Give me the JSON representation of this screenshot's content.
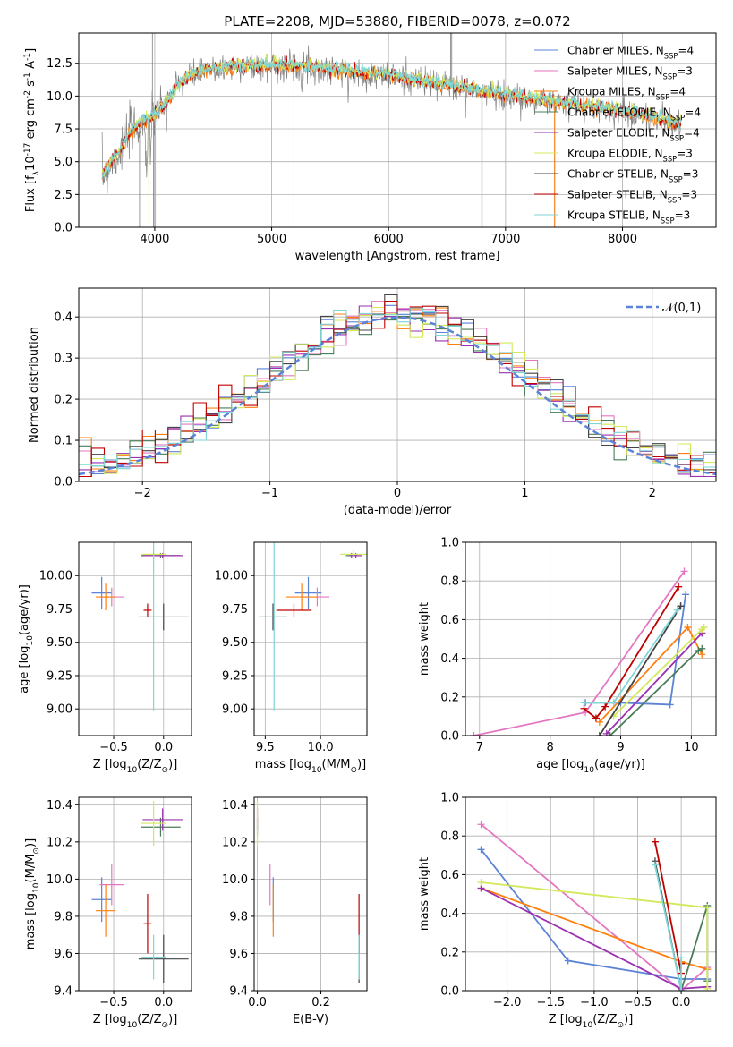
{
  "chart_data": [
    {
      "panel": "spectrum",
      "type": "line",
      "title": "PLATE=2208, MJD=53880, FIBERID=0078, z=0.072",
      "xlabel": "wavelength [Angstrom, rest frame]",
      "ylabel": "Flux [f$_\\lambda$10$^{-17}$ erg cm$^{-2}$ s$^{-1}$ A$^{-1}$]",
      "xlim": [
        3350,
        8800
      ],
      "ylim": [
        0,
        14.8
      ],
      "xticks": [
        4000,
        5000,
        6000,
        7000,
        8000
      ],
      "yticks": [
        0.0,
        2.5,
        5.0,
        7.5,
        10.0,
        12.5
      ],
      "xtick_labels": [
        "4000",
        "5000",
        "6000",
        "7000",
        "8000"
      ],
      "ytick_labels": [
        "0.0",
        "2.5",
        "5.0",
        "7.5",
        "10.0",
        "12.5"
      ],
      "legend_position": "top-right",
      "legend": [
        "Chabrier MILES, N$_{SSP}$=4",
        "Salpeter MILES, N$_{SSP}$=3",
        "Kroupa MILES, N$_{SSP}$=4",
        "Chabrier ELODIE, N$_{SSP}$=4",
        "Salpeter ELODIE, N$_{SSP}$=4",
        "Kroupa ELODIE, N$_{SSP}$=3",
        "Chabrier STELIB, N$_{SSP}$=3",
        "Salpeter STELIB, N$_{SSP}$=3",
        "Kroupa STELIB, N$_{SSP}$=3"
      ],
      "continuum": {
        "x": [
          3550,
          3600,
          3700,
          3800,
          3900,
          4000,
          4100,
          4200,
          4300,
          4400,
          4500,
          4700,
          5000,
          5300,
          5500,
          6000,
          6500,
          7000,
          7500,
          8000,
          8500
        ],
        "y": [
          3.8,
          4.5,
          5.8,
          7.3,
          8.0,
          8.5,
          9.5,
          10.8,
          11.5,
          11.8,
          12.0,
          12.2,
          12.3,
          12.2,
          12.0,
          11.5,
          10.8,
          10.0,
          9.4,
          8.8,
          7.8
        ]
      }
    },
    {
      "panel": "residuals",
      "type": "step",
      "xlabel": "(data-model)/error",
      "ylabel": "Normed distribution",
      "xlim": [
        -2.5,
        2.5
      ],
      "ylim": [
        0,
        0.47
      ],
      "xticks": [
        -2,
        -1,
        0,
        1,
        2
      ],
      "yticks": [
        0.0,
        0.1,
        0.2,
        0.3,
        0.4
      ],
      "xtick_labels": [
        "−2",
        "−1",
        "0",
        "1",
        "2"
      ],
      "ytick_labels": [
        "0.0",
        "0.1",
        "0.2",
        "0.3",
        "0.4"
      ],
      "legend": [
        "$\\mathcal{N}(0,1)$"
      ],
      "legend_position": "top-right",
      "bins": 50,
      "gaussian": {
        "mu": 0,
        "sigma": 1
      }
    },
    {
      "panel": "age-vs-Z",
      "type": "scatter-errorbar",
      "xlabel": "Z [log$_{10}$(Z/Z$_\\odot$)]",
      "ylabel": "age  [log$_{10}$(age/yr)]",
      "xlim": [
        -0.85,
        0.28
      ],
      "ylim": [
        8.8,
        10.25
      ],
      "xticks": [
        -0.5,
        0.0
      ],
      "yticks": [
        9.0,
        9.25,
        9.5,
        9.75,
        10.0
      ],
      "xtick_labels": [
        "−0.5",
        "0.0"
      ],
      "ytick_labels": [
        "9.00",
        "9.25",
        "9.50",
        "9.75",
        "10.00"
      ]
    },
    {
      "panel": "age-vs-mass",
      "type": "scatter-errorbar",
      "xlabel": "mass [log$_{10}$(M/M$_\\odot$)]",
      "xlim": [
        9.4,
        10.42
      ],
      "ylim": [
        8.8,
        10.25
      ],
      "xticks": [
        9.5,
        10.0
      ],
      "yticks": [
        9.0,
        9.25,
        9.5,
        9.75,
        10.0
      ],
      "xtick_labels": [
        "9.5",
        "10.0"
      ],
      "ytick_labels": [
        "9.00",
        "9.25",
        "9.50",
        "9.75",
        "10.00"
      ]
    },
    {
      "panel": "weight-vs-age",
      "type": "line",
      "xlabel": "age  [log$_{10}$(age/yr)]",
      "ylabel": "mass weight",
      "xlim": [
        6.8,
        10.35
      ],
      "ylim": [
        0,
        1.0
      ],
      "xticks": [
        7,
        8,
        9,
        10
      ],
      "yticks": [
        0.0,
        0.2,
        0.4,
        0.6,
        0.8,
        1.0
      ],
      "xtick_labels": [
        "7",
        "8",
        "9",
        "10"
      ],
      "ytick_labels": [
        "0.0",
        "0.2",
        "0.4",
        "0.6",
        "0.8",
        "1.0"
      ],
      "series": [
        {
          "color": "#5b84d6",
          "x": [
            8.5,
            9.0,
            9.7,
            9.92
          ],
          "y": [
            0.17,
            0.17,
            0.16,
            0.73
          ]
        },
        {
          "color": "#e377c2",
          "x": [
            6.92,
            8.5,
            9.9
          ],
          "y": [
            0.0,
            0.12,
            0.85
          ]
        },
        {
          "color": "#ff7f0e",
          "x": [
            8.7,
            9.95,
            10.15
          ],
          "y": [
            0.07,
            0.56,
            0.42
          ]
        },
        {
          "color": "#4a7c59",
          "x": [
            8.85,
            10.1,
            10.15
          ],
          "y": [
            0.0,
            0.44,
            0.45
          ]
        },
        {
          "color": "#9b30b0",
          "x": [
            8.8,
            10.15,
            10.15
          ],
          "y": [
            0.01,
            0.53,
            0.53
          ]
        },
        {
          "color": "#d4e85a",
          "x": [
            8.9,
            10.15,
            10.18
          ],
          "y": [
            0.1,
            0.55,
            0.56
          ]
        },
        {
          "color": "#444444",
          "x": [
            8.7,
            9.85,
            9.85
          ],
          "y": [
            0.0,
            0.67,
            0.67
          ]
        },
        {
          "color": "#c00000",
          "x": [
            8.48,
            8.65,
            8.78,
            9.82
          ],
          "y": [
            0.14,
            0.09,
            0.15,
            0.77
          ]
        },
        {
          "color": "#7fd6d6",
          "x": [
            8.48,
            8.9,
            9.8
          ],
          "y": [
            0.17,
            0.17,
            0.65
          ]
        }
      ]
    },
    {
      "panel": "mass-vs-Z",
      "type": "scatter-errorbar",
      "xlabel": "Z [log$_{10}$(Z/Z$_\\odot$)]",
      "ylabel": "mass [log$_{10}$(M/M$_\\odot$)]",
      "xlim": [
        -0.85,
        0.28
      ],
      "ylim": [
        9.4,
        10.44
      ],
      "xticks": [
        -0.5,
        0.0
      ],
      "yticks": [
        9.4,
        9.6,
        9.8,
        10.0,
        10.2,
        10.4
      ],
      "xtick_labels": [
        "−0.5",
        "0.0"
      ],
      "ytick_labels": [
        "9.4",
        "9.6",
        "9.8",
        "10.0",
        "10.2",
        "10.4"
      ]
    },
    {
      "panel": "mass-vs-EBV",
      "type": "scatter-errorbar",
      "xlabel": "E(B-V)",
      "xlim": [
        -0.01,
        0.345
      ],
      "ylim": [
        9.4,
        10.44
      ],
      "xticks": [
        0.0,
        0.2
      ],
      "yticks": [
        9.4,
        9.6,
        9.8,
        10.0,
        10.2,
        10.4
      ],
      "xtick_labels": [
        "0.0",
        "0.2"
      ],
      "ytick_labels": [
        "9.4",
        "9.6",
        "9.8",
        "10.0",
        "10.2",
        "10.4"
      ]
    },
    {
      "panel": "weight-vs-Z",
      "type": "line",
      "xlabel": "Z [log$_{10}$(Z/Z$_\\odot$)]",
      "ylabel": "mass weight",
      "xlim": [
        -2.48,
        0.4
      ],
      "ylim": [
        0,
        1.0
      ],
      "xticks": [
        -2.0,
        -1.5,
        -1.0,
        -0.5,
        0.0
      ],
      "yticks": [
        0.0,
        0.2,
        0.4,
        0.6,
        0.8,
        1.0
      ],
      "xtick_labels": [
        "−2.0",
        "−1.5",
        "−1.0",
        "−0.5",
        "0.0"
      ],
      "ytick_labels": [
        "0.0",
        "0.2",
        "0.4",
        "0.6",
        "0.8",
        "1.0"
      ],
      "series": [
        {
          "color": "#5b84d6",
          "x": [
            -2.3,
            -1.3,
            0.0,
            0.3
          ],
          "y": [
            0.73,
            0.155,
            0.06,
            0.06
          ]
        },
        {
          "color": "#e377c2",
          "x": [
            -2.3,
            0.0,
            0.3
          ],
          "y": [
            0.86,
            0.0,
            0.12
          ]
        },
        {
          "color": "#ff7f0e",
          "x": [
            -2.3,
            0.0,
            0.3
          ],
          "y": [
            0.53,
            0.15,
            0.11
          ]
        },
        {
          "color": "#4a7c59",
          "x": [
            0.0,
            0.3,
            0.3
          ],
          "y": [
            0.0,
            0.44,
            0.05
          ]
        },
        {
          "color": "#9b30b0",
          "x": [
            -2.3,
            0.0,
            0.3
          ],
          "y": [
            0.53,
            0.01,
            0.02
          ]
        },
        {
          "color": "#d4e85a",
          "x": [
            -2.3,
            0.3,
            0.3
          ],
          "y": [
            0.56,
            0.43,
            0.01
          ]
        },
        {
          "color": "#444444",
          "x": [
            -0.3,
            0.0
          ],
          "y": [
            0.67,
            0.0
          ]
        },
        {
          "color": "#c00000",
          "x": [
            -0.3,
            0.0,
            0.0
          ],
          "y": [
            0.77,
            0.09,
            0.14
          ]
        },
        {
          "color": "#7fd6d6",
          "x": [
            -0.3,
            0.0,
            0.0
          ],
          "y": [
            0.65,
            0.0,
            0.17
          ]
        }
      ]
    }
  ],
  "colors": [
    "#5b84d6",
    "#e377c2",
    "#ff7f0e",
    "#4a7c59",
    "#9b30b0",
    "#d4e85a",
    "#444444",
    "#c00000",
    "#7fd6d6"
  ],
  "errorbars": [
    {
      "color": "#5b84d6",
      "Z": [
        -0.62,
        0.1
      ],
      "age": [
        9.87,
        0.12
      ],
      "mass": [
        9.89,
        0.12
      ],
      "ebv": 0.05
    },
    {
      "color": "#e377c2",
      "Z": [
        -0.52,
        0.12
      ],
      "age": [
        9.84,
        0.07
      ],
      "mass": [
        9.97,
        0.11
      ],
      "ebv": 0.04
    },
    {
      "color": "#ff7f0e",
      "Z": [
        -0.58,
        0.1
      ],
      "age": [
        9.84,
        0.1
      ],
      "mass": [
        9.83,
        0.14
      ],
      "ebv": 0.05
    },
    {
      "color": "#4a7c59",
      "Z": [
        -0.03,
        0.2
      ],
      "age": [
        10.15,
        0.02
      ],
      "mass": [
        10.28,
        0.05
      ],
      "ebv": 0.0
    },
    {
      "color": "#9b30b0",
      "Z": [
        -0.01,
        0.2
      ],
      "age": [
        10.15,
        0.02
      ],
      "mass": [
        10.32,
        0.06
      ],
      "ebv": 0.0
    },
    {
      "color": "#d4e85a",
      "Z": [
        -0.1,
        0.12
      ],
      "age": [
        10.16,
        0.03
      ],
      "mass": [
        10.3,
        0.12
      ],
      "ebv": 0.0
    },
    {
      "color": "#444444",
      "Z": [
        0.0,
        0.25
      ],
      "age": [
        9.69,
        0.1
      ],
      "mass": [
        9.57,
        0.13
      ],
      "ebv": 0.32
    },
    {
      "color": "#c00000",
      "Z": [
        -0.16,
        0.04
      ],
      "age": [
        9.74,
        0.05
      ],
      "mass": [
        9.76,
        0.16
      ],
      "ebv": 0.32
    },
    {
      "color": "#7fd6d6",
      "Z": [
        -0.1,
        0.12
      ],
      "age": [
        9.69,
        0.7
      ],
      "mass": [
        9.58,
        0.12
      ],
      "ebv": 0.32
    }
  ]
}
